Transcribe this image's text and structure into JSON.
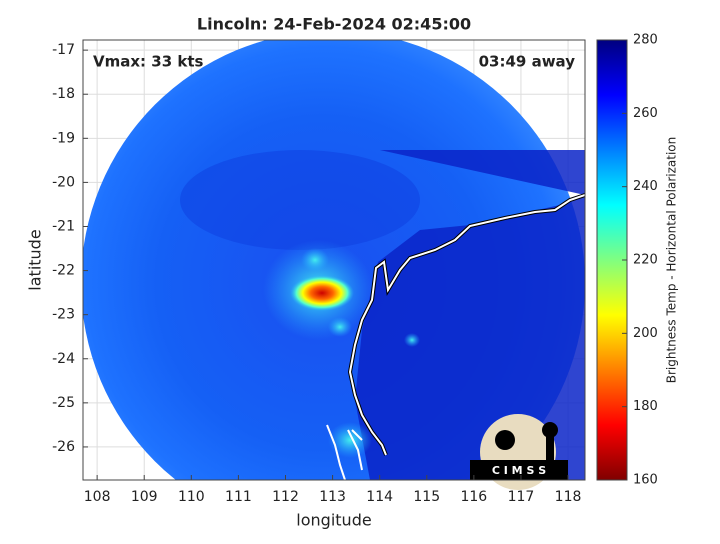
{
  "chart_data": {
    "type": "image",
    "title": "Lincoln: 24-Feb-2024 02:45:00",
    "annotations": [
      "Vmax: 33 kts",
      "03:49 away"
    ],
    "x_label": "longitude",
    "y_label": "latitude",
    "xlim": [
      107.7,
      118.36
    ],
    "ylim": [
      -26.75,
      -16.77
    ],
    "xticks": [
      108,
      109,
      110,
      111,
      112,
      113,
      114,
      115,
      116,
      117,
      118
    ],
    "yticks": [
      -17,
      -18,
      -19,
      -20,
      -21,
      -22,
      -23,
      -24,
      -25,
      -26
    ],
    "grid": true,
    "colorbar": {
      "label": "Brightness Temp - Horizontal Polarization",
      "lim": [
        160,
        280
      ],
      "ticks": [
        160,
        180,
        200,
        220,
        240,
        260,
        280
      ],
      "colormap": "jet"
    },
    "logo_text": "C I M S S"
  }
}
